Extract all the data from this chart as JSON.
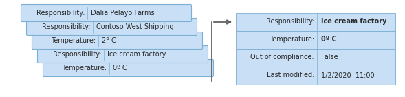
{
  "left_cards": [
    {
      "label": "Responsibility:",
      "value": "Dalia Pelayo Farms"
    },
    {
      "label": "Responsibility:",
      "value": "Contoso West Shipping"
    },
    {
      "label": "Temperature:",
      "value": "2º C"
    },
    {
      "label": "Responsibility:",
      "value": "Ice cream factory"
    },
    {
      "label": "Temperature:",
      "value": "0º C"
    }
  ],
  "right_rows": [
    {
      "label": "Responsibility:",
      "value": "Ice cream factory",
      "bold_value": true
    },
    {
      "label": "Temperature:",
      "value": "0º C",
      "bold_value": true
    },
    {
      "label": "Out of compliance:",
      "value": "False",
      "bold_value": false
    },
    {
      "label": "Last modified:",
      "value": "1/2/2020  11:00",
      "bold_value": false
    }
  ],
  "card_bg": "#c8dff5",
  "border_color": "#7bafd4",
  "text_color": "#2a2a2a",
  "bg_color": "#ffffff",
  "font_size": 7.0
}
